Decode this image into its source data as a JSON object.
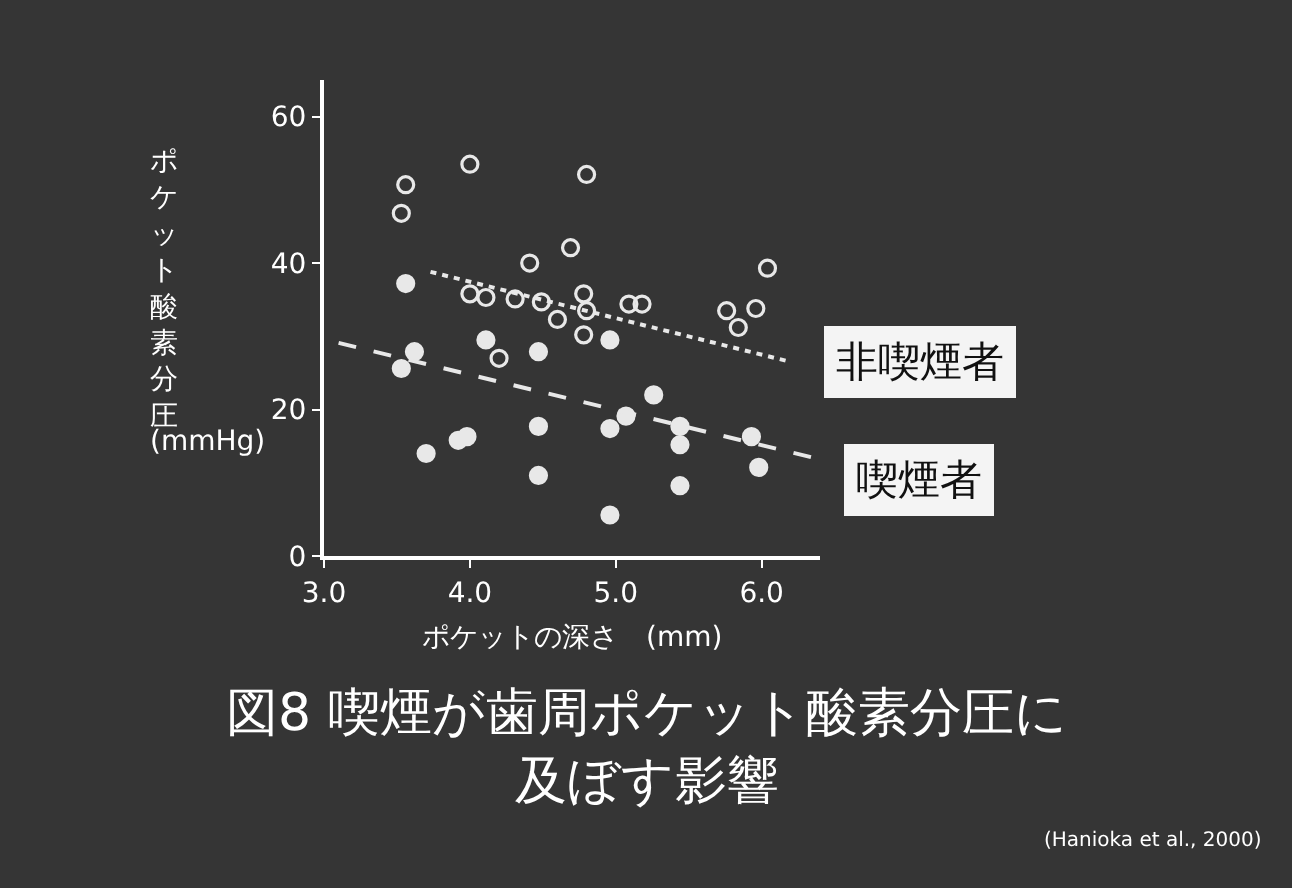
{
  "chart_data": {
    "type": "scatter",
    "title": "図8 喫煙が歯周ポケット酸素分圧に及ぼす影響",
    "xlabel": "ポケットの深さ　(mm)",
    "ylabel": "ポケット酸素分圧\n(mmHg)",
    "annotations": [
      "(Hanioka et al., 2000)"
    ],
    "series": [
      {
        "name": "非喫煙者",
        "color": "#e8e8e8",
        "marker": "circle",
        "x": [
          4.0,
          3.56,
          3.53,
          4.8,
          4.41,
          4.69,
          6.04,
          4.0,
          4.11,
          4.31,
          4.49,
          4.6,
          4.78,
          4.8,
          4.78,
          5.09,
          5.18,
          5.76,
          5.96,
          5.84,
          4.2
        ],
        "values": [
          53.5,
          50.7,
          46.8,
          52.1,
          40.0,
          42.1,
          39.3,
          35.8,
          35.3,
          35.1,
          34.7,
          32.3,
          35.8,
          33.5,
          30.2,
          34.4,
          34.4,
          33.5,
          33.8,
          31.2,
          27.0
        ]
      },
      {
        "name": "喫煙者",
        "color": "#e8e8e8",
        "marker": "circle",
        "x": [
          3.56,
          3.53,
          3.62,
          4.11,
          4.47,
          4.96,
          5.26,
          3.98,
          3.92,
          3.7,
          4.47,
          4.96,
          5.07,
          5.44,
          5.44,
          5.93,
          5.98,
          4.47,
          5.44,
          4.96
        ],
        "values": [
          37.2,
          25.6,
          27.9,
          29.5,
          27.9,
          29.5,
          22.0,
          16.3,
          15.8,
          14.0,
          17.7,
          17.4,
          19.1,
          17.7,
          15.2,
          16.3,
          12.1,
          11.0,
          9.6,
          5.6
        ]
      },
      {
        "type": "line",
        "color": "#e8e8e8",
        "line_style": "dotted",
        "x": [
          3.73,
          6.2
        ],
        "values": [
          38.8,
          26.5
        ]
      },
      {
        "type": "line",
        "color": "#e8e8e8",
        "line_style": "dashed",
        "x": [
          3.1,
          6.38
        ],
        "values": [
          29.1,
          13.3
        ]
      }
    ],
    "xlim": [
      3.0,
      6.4
    ],
    "xticks": [
      {
        "value": 3,
        "label": "3.0"
      },
      {
        "value": 4,
        "label": "4.0"
      },
      {
        "value": 5,
        "label": "5.0"
      },
      {
        "value": 6,
        "label": "6.0"
      }
    ],
    "ylim": [
      0,
      65
    ],
    "yticks": [
      0,
      20,
      40,
      60
    ],
    "grid": false
  }
}
